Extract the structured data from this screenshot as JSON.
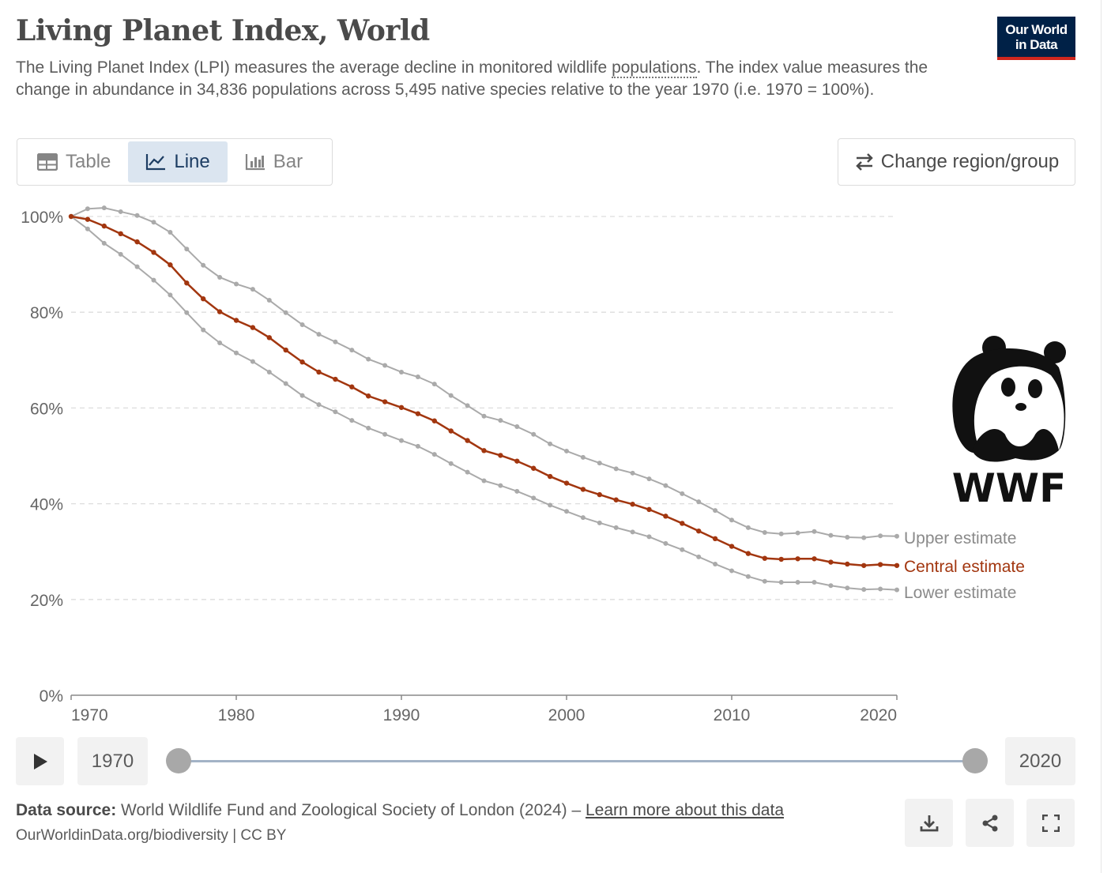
{
  "header": {
    "title": "Living Planet Index, World",
    "subtitle_part1": "The Living Planet Index (LPI) measures the average decline in monitored wildlife ",
    "subtitle_link": "populations",
    "subtitle_part2": ". The index value measures the change in abundance in 34,836 populations across 5,495 native species relative to the year 1970 (i.e. 1970 = 100%).",
    "logo_line1": "Our World",
    "logo_line2": "in Data"
  },
  "tabs": [
    {
      "label": "Table",
      "icon": "table-icon"
    },
    {
      "label": "Line",
      "icon": "line-chart-icon",
      "active": true
    },
    {
      "label": "Bar",
      "icon": "bar-chart-icon"
    }
  ],
  "change_region_label": "Change region/group",
  "sponsor_logo_text": "WWF",
  "timeline": {
    "start_label": "1970",
    "end_label": "2020"
  },
  "footer": {
    "source_label": "Data source:",
    "source_text": " World Wildlife Fund and Zoological Society of London (2024) – ",
    "learn_more": "Learn more about this data",
    "url_license": "OurWorldinData.org/biodiversity | CC BY"
  },
  "colors": {
    "central": "#a2360f",
    "bounds": "#aaaaaa",
    "grid": "#dddddd"
  },
  "chart_data": {
    "type": "line",
    "title": "Living Planet Index, World",
    "x_start": 1970,
    "x_end": 2020,
    "xlim": [
      1970,
      2020
    ],
    "ylim": [
      0,
      100
    ],
    "y_unit": "%",
    "x_ticks": [
      "1970",
      "1980",
      "1990",
      "2000",
      "2010",
      "2020"
    ],
    "y_ticks": [
      "0%",
      "20%",
      "40%",
      "60%",
      "80%",
      "100%"
    ],
    "grid": "horizontal dashed",
    "legend": "right, inline labels at line ends",
    "series": [
      {
        "name": "Upper estimate",
        "color": "#aaaaaa",
        "values": [
          100,
          101.6,
          101.8,
          101.0,
          100.2,
          98.8,
          96.7,
          93.2,
          89.8,
          87.3,
          85.9,
          84.8,
          82.5,
          79.9,
          77.4,
          75.4,
          73.8,
          72.1,
          70.2,
          68.9,
          67.5,
          66.5,
          65.0,
          62.6,
          60.5,
          58.3,
          57.4,
          56.1,
          54.5,
          52.5,
          51.0,
          49.7,
          48.5,
          47.3,
          46.4,
          45.2,
          43.8,
          42.1,
          40.4,
          38.6,
          36.6,
          35.0,
          34.0,
          33.7,
          33.9,
          34.2,
          33.4,
          33.0,
          32.9,
          33.3,
          33.2
        ]
      },
      {
        "name": "Central estimate",
        "color": "#a2360f",
        "values": [
          100,
          99.4,
          98.0,
          96.4,
          94.7,
          92.5,
          89.9,
          86.1,
          82.8,
          80.1,
          78.3,
          76.8,
          74.7,
          72.1,
          69.6,
          67.5,
          66.0,
          64.4,
          62.5,
          61.3,
          60.1,
          58.8,
          57.3,
          55.2,
          53.2,
          51.1,
          50.1,
          48.9,
          47.4,
          45.7,
          44.3,
          43.0,
          41.9,
          40.8,
          39.9,
          38.8,
          37.4,
          35.9,
          34.3,
          32.7,
          31.1,
          29.6,
          28.6,
          28.4,
          28.5,
          28.5,
          27.8,
          27.4,
          27.1,
          27.3,
          27.1
        ]
      },
      {
        "name": "Lower estimate",
        "color": "#aaaaaa",
        "values": [
          100,
          97.4,
          94.4,
          92.1,
          89.5,
          86.7,
          83.6,
          79.9,
          76.3,
          73.6,
          71.5,
          69.7,
          67.5,
          65.1,
          62.6,
          60.7,
          59.2,
          57.4,
          55.8,
          54.5,
          53.2,
          52.0,
          50.3,
          48.4,
          46.6,
          44.8,
          43.8,
          42.6,
          41.2,
          39.7,
          38.4,
          37.1,
          36.0,
          35.0,
          34.1,
          33.1,
          31.7,
          30.4,
          28.9,
          27.4,
          26.0,
          24.8,
          23.8,
          23.6,
          23.6,
          23.6,
          22.9,
          22.4,
          22.1,
          22.2,
          22.0
        ]
      }
    ]
  }
}
